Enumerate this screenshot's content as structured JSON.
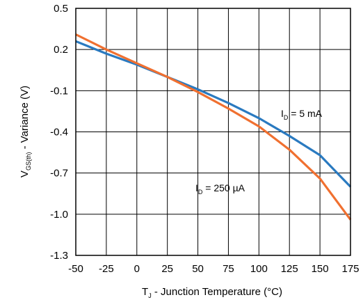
{
  "chart_data": {
    "type": "line",
    "xlabel_main": "T",
    "xlabel_sub": "J",
    "xlabel_rest": " - Junction Temperature (°C)",
    "ylabel_main": "V",
    "ylabel_sub": "GS(th)",
    "ylabel_rest": " - Variance (V)",
    "xlim": [
      -50,
      175
    ],
    "ylim": [
      -1.3,
      0.5
    ],
    "xticks": [
      -50,
      -25,
      0,
      25,
      50,
      75,
      100,
      125,
      150,
      175
    ],
    "yticks": [
      0.5,
      0.2,
      -0.1,
      -0.4,
      -0.7,
      -1.0,
      -1.3
    ],
    "xtick_labels": [
      "-50",
      "-25",
      "0",
      "25",
      "50",
      "75",
      "100",
      "125",
      "150",
      "175"
    ],
    "ytick_labels": [
      "0.5",
      "0.2",
      "-0.1",
      "-0.4",
      "-0.7",
      "-1.0",
      "-1.3"
    ],
    "grid": true,
    "series": [
      {
        "label_main": "I",
        "label_sub": "D",
        "label_rest": " = 5 mA",
        "color": "#2a7ac0",
        "x": [
          -50,
          -25,
          0,
          25,
          50,
          75,
          100,
          125,
          150,
          175
        ],
        "y": [
          0.26,
          0.17,
          0.09,
          0.0,
          -0.09,
          -0.19,
          -0.3,
          -0.43,
          -0.57,
          -0.8
        ]
      },
      {
        "label_main": "I",
        "label_sub": "D",
        "label_rest": " = 250 µA",
        "color": "#f07030",
        "x": [
          -50,
          -25,
          0,
          25,
          50,
          75,
          100,
          125,
          150,
          175
        ],
        "y": [
          0.31,
          0.2,
          0.1,
          0.0,
          -0.11,
          -0.23,
          -0.36,
          -0.53,
          -0.74,
          -1.04
        ]
      }
    ]
  }
}
